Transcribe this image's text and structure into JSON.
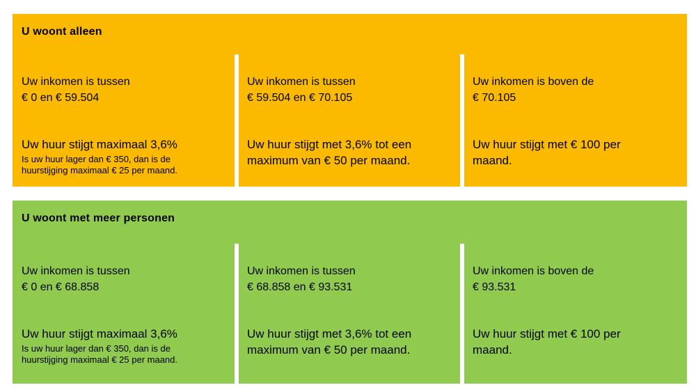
{
  "colors": {
    "single_panel": "#FBBA00",
    "multi_panel": "#90CB4F",
    "divider": "#FFFFFF",
    "text": "#000000"
  },
  "panels": [
    {
      "title": "U woont alleen",
      "color": "#FBBA00",
      "columns": [
        {
          "income": "Uw inkomen is tussen\n€ 0 en € 59.504",
          "rent": "Uw huur stijgt maximaal 3,6%",
          "note": "Is uw huur lager dan € 350, dan is de\nhuurstijging maximaal € 25 per maand."
        },
        {
          "income": "Uw inkomen is tussen\n€ 59.504 en € 70.105",
          "rent": "Uw huur stijgt met 3,6% tot een\nmaximum van € 50 per maand.",
          "note": ""
        },
        {
          "income": "Uw inkomen is boven de\n€ 70.105",
          "rent": "Uw huur stijgt met € 100 per\nmaand.",
          "note": ""
        }
      ]
    },
    {
      "title": "U woont met meer personen",
      "color": "#90CB4F",
      "columns": [
        {
          "income": "Uw inkomen is tussen\n€ 0 en € 68.858",
          "rent": "Uw huur stijgt maximaal 3,6%",
          "note": "Is uw huur lager dan € 350, dan is de\nhuurstijging maximaal € 25 per maand."
        },
        {
          "income": "Uw inkomen is tussen\n€ 68.858 en € 93.531",
          "rent": "Uw huur stijgt met 3,6% tot een\nmaximum van € 50 per maand.",
          "note": ""
        },
        {
          "income": "Uw inkomen is boven de\n€ 93.531",
          "rent": "Uw huur stijgt met € 100 per\nmaand.",
          "note": ""
        }
      ]
    }
  ]
}
